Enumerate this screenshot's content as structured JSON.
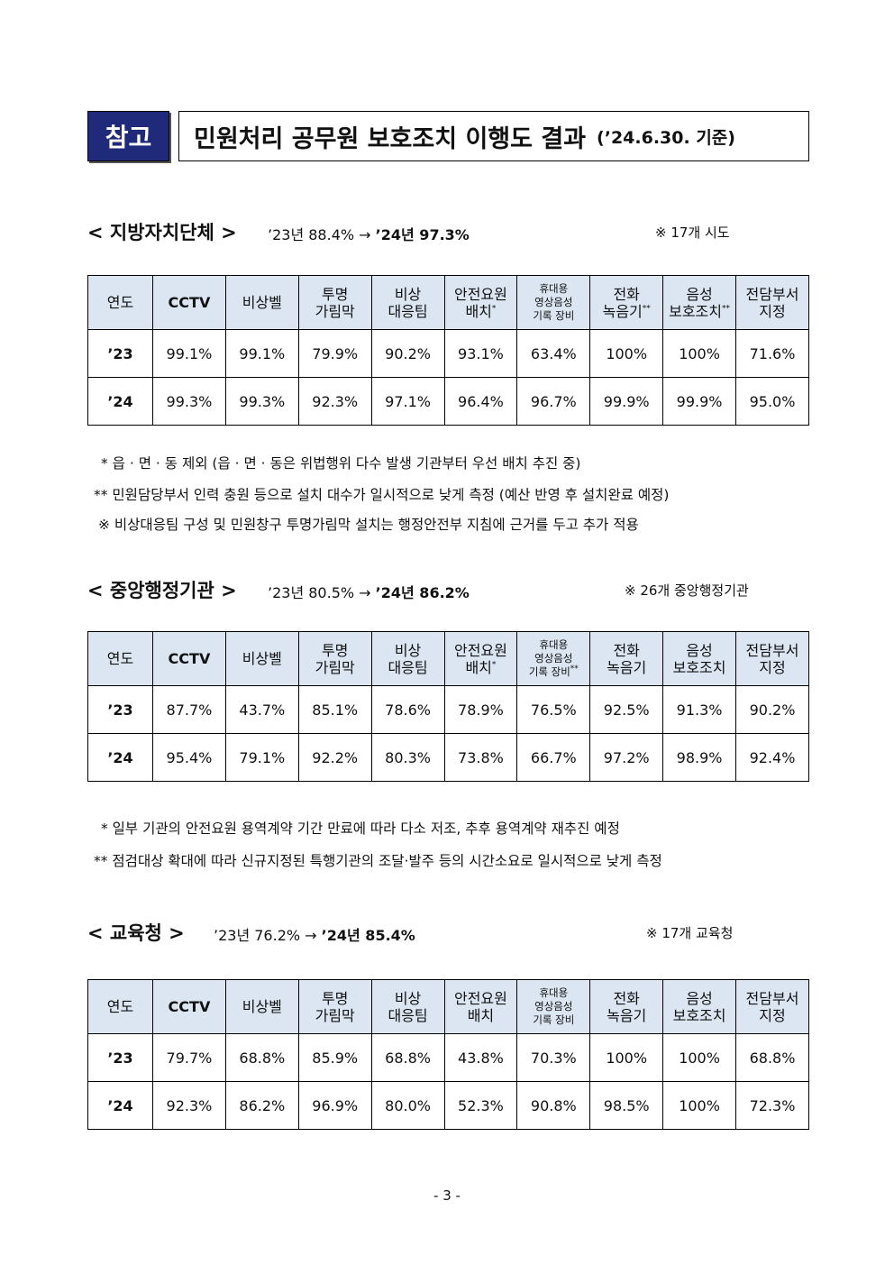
{
  "header": {
    "tag": "참고",
    "title": "민원처리 공무원 보호조치 이행도 결과",
    "subtitle": "(’24.6.30. 기준)"
  },
  "table_headers": {
    "year": "연도",
    "cctv": "CCTV",
    "bell": "비상벨",
    "partition": [
      "투명",
      "가림막"
    ],
    "team": [
      "비상",
      "대응팀"
    ],
    "guard": [
      "안전요원",
      "배치"
    ],
    "device": [
      "휴대용",
      "영상음성",
      "기록 장비"
    ],
    "recorder": [
      "전화",
      "녹음기"
    ],
    "voice": [
      "음성",
      "보호조치"
    ],
    "dept": [
      "전담부서",
      "지정"
    ]
  },
  "sections": [
    {
      "name": "< 지방자치단체 >",
      "trend_from": "’23년 88.4% →",
      "trend_to": "’24년 97.3%",
      "scope": "※ 17개 시도",
      "rows": [
        {
          "year": "’23",
          "values": [
            "99.1%",
            "99.1%",
            "79.9%",
            "90.2%",
            "93.1%",
            "63.4%",
            "100%",
            "100%",
            "71.6%"
          ]
        },
        {
          "year": "’24",
          "values": [
            "99.3%",
            "99.3%",
            "92.3%",
            "97.1%",
            "96.4%",
            "96.7%",
            "99.9%",
            "99.9%",
            "95.0%"
          ]
        }
      ],
      "notes": [
        "* 읍 · 면 · 동 제외 (읍 · 면 · 동은 위법행위 다수 발생 기관부터 우선 배치 추진 중)",
        "** 민원담당부서 인력 충원 등으로 설치 대수가 일시적으로 낮게 측정 (예산 반영 후 설치완료 예정)",
        "※ 비상대응팀 구성 및 민원창구 투명가림막 설치는 행정안전부 지침에 근거를 두고 추가 적용"
      ]
    },
    {
      "name": "< 중앙행정기관 >",
      "trend_from": "’23년 80.5% →",
      "trend_to": "’24년 86.2%",
      "scope": "※ 26개 중앙행정기관",
      "rows": [
        {
          "year": "’23",
          "values": [
            "87.7%",
            "43.7%",
            "85.1%",
            "78.6%",
            "78.9%",
            "76.5%",
            "92.5%",
            "91.3%",
            "90.2%"
          ]
        },
        {
          "year": "’24",
          "values": [
            "95.4%",
            "79.1%",
            "92.2%",
            "80.3%",
            "73.8%",
            "66.7%",
            "97.2%",
            "98.9%",
            "92.4%"
          ]
        }
      ],
      "notes": [
        "* 일부 기관의 안전요원 용역계약 기간 만료에 따라 다소 저조, 추후 용역계약 재추진 예정",
        "** 점검대상 확대에 따라 신규지정된 특행기관의 조달·발주 등의 시간소요로 일시적으로 낮게 측정"
      ]
    },
    {
      "name": "< 교육청 >",
      "trend_from": "’23년 76.2% →",
      "trend_to": "’24년 85.4%",
      "scope": "※ 17개 교육청",
      "rows": [
        {
          "year": "’23",
          "values": [
            "79.7%",
            "68.8%",
            "85.9%",
            "68.8%",
            "43.8%",
            "70.3%",
            "100%",
            "100%",
            "68.8%"
          ]
        },
        {
          "year": "’24",
          "values": [
            "92.3%",
            "86.2%",
            "96.9%",
            "80.0%",
            "52.3%",
            "90.8%",
            "98.5%",
            "100%",
            "72.3%"
          ]
        }
      ]
    }
  ],
  "page_number": "- 3 -"
}
